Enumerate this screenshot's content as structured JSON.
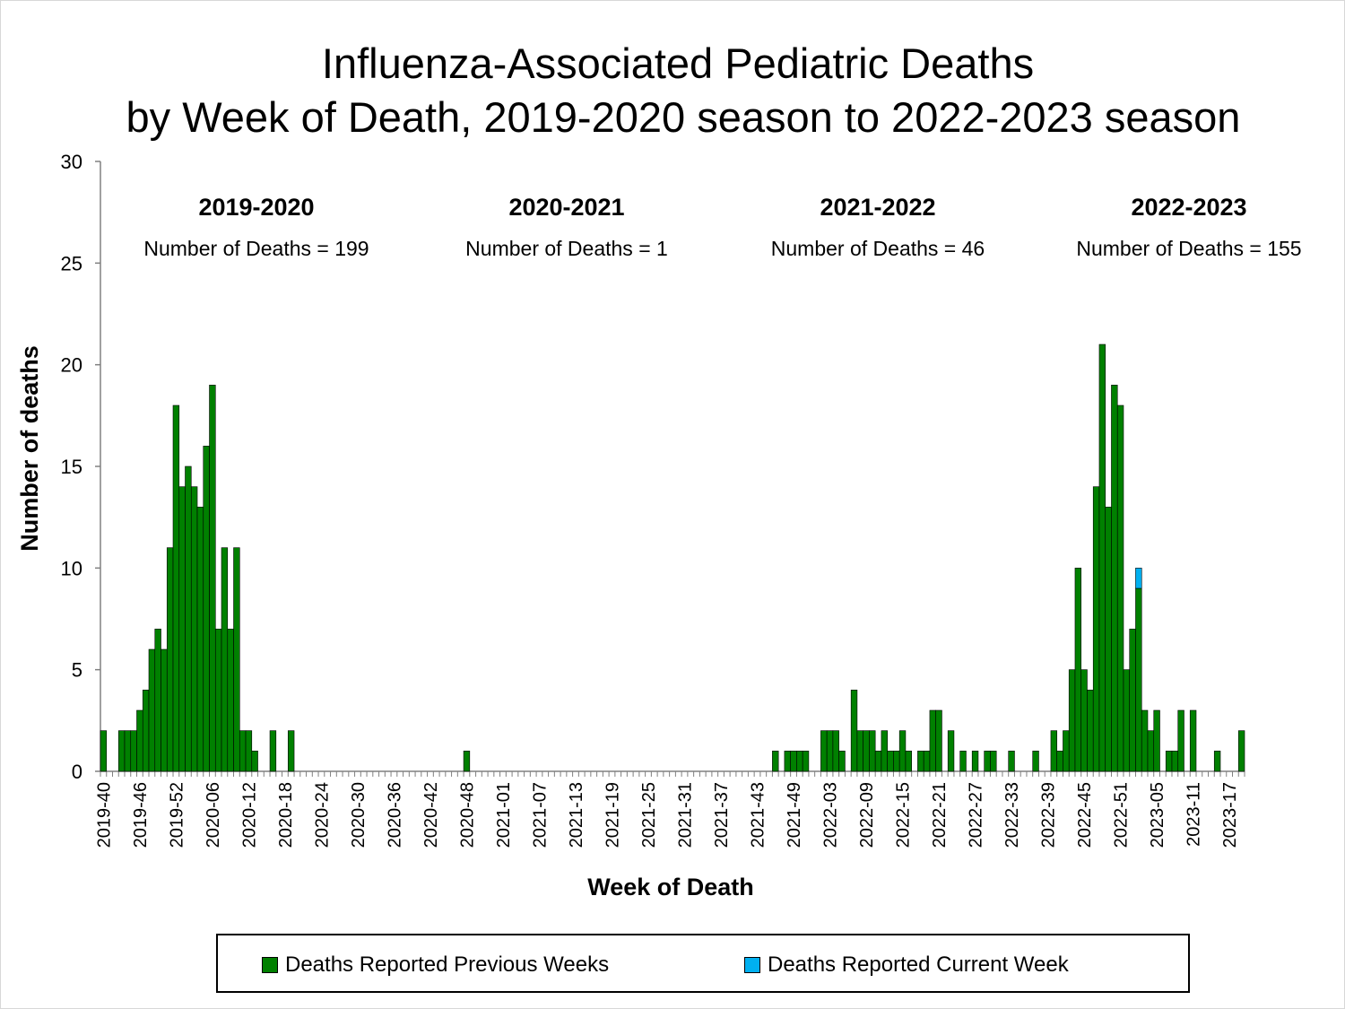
{
  "title_line1": "Influenza-Associated Pediatric Deaths",
  "title_line2": "by Week of Death, 2019-2020 season to 2022-2023 season",
  "colors": {
    "previous": "#008000",
    "current": "#00b0f0",
    "axis": "#808080"
  },
  "chart_data": {
    "type": "bar",
    "stacked": true,
    "xlabel": "Week of Death",
    "ylabel": "Number of deaths",
    "ylim": [
      0,
      30
    ],
    "yticks": [
      0,
      5,
      10,
      15,
      20,
      25,
      30
    ],
    "x_tick_labels": [
      "2019-40",
      "2019-46",
      "2019-52",
      "2020-06",
      "2020-12",
      "2020-18",
      "2020-24",
      "2020-30",
      "2020-36",
      "2020-42",
      "2020-48",
      "2021-01",
      "2021-07",
      "2021-13",
      "2021-19",
      "2021-25",
      "2021-31",
      "2021-37",
      "2021-43",
      "2021-49",
      "2022-03",
      "2022-09",
      "2022-15",
      "2022-21",
      "2022-27",
      "2022-33",
      "2022-39",
      "2022-45",
      "2022-51",
      "2023-05",
      "2023-11",
      "2023-17"
    ],
    "x_tick_every": 6,
    "seasons": [
      {
        "name": "2019-2020",
        "deaths_label": "Number of Deaths = 199"
      },
      {
        "name": "2020-2021",
        "deaths_label": "Number of Deaths = 1"
      },
      {
        "name": "2021-2022",
        "deaths_label": "Number of Deaths = 46"
      },
      {
        "name": "2022-2023",
        "deaths_label": "Number of Deaths = 155"
      }
    ],
    "series": [
      {
        "name": "Deaths Reported Previous Weeks",
        "values": [
          2,
          0,
          0,
          2,
          2,
          2,
          3,
          4,
          6,
          7,
          6,
          11,
          18,
          14,
          15,
          14,
          13,
          16,
          19,
          7,
          11,
          7,
          11,
          2,
          2,
          1,
          0,
          0,
          2,
          0,
          0,
          2,
          0,
          0,
          0,
          0,
          0,
          0,
          0,
          0,
          0,
          0,
          0,
          0,
          0,
          0,
          0,
          0,
          0,
          0,
          0,
          0,
          0,
          0,
          0,
          0,
          0,
          0,
          0,
          0,
          1,
          0,
          0,
          0,
          0,
          0,
          0,
          0,
          0,
          0,
          0,
          0,
          0,
          0,
          0,
          0,
          0,
          0,
          0,
          0,
          0,
          0,
          0,
          0,
          0,
          0,
          0,
          0,
          0,
          0,
          0,
          0,
          0,
          0,
          0,
          0,
          0,
          0,
          0,
          0,
          0,
          0,
          0,
          0,
          0,
          0,
          0,
          0,
          0,
          0,
          0,
          1,
          0,
          1,
          1,
          1,
          1,
          0,
          0,
          2,
          2,
          2,
          1,
          0,
          4,
          2,
          2,
          2,
          1,
          2,
          1,
          1,
          2,
          1,
          0,
          1,
          1,
          3,
          3,
          0,
          2,
          0,
          1,
          0,
          1,
          0,
          1,
          1,
          0,
          0,
          1,
          0,
          0,
          0,
          1,
          0,
          0,
          2,
          1,
          2,
          5,
          10,
          5,
          4,
          14,
          21,
          13,
          19,
          18,
          5,
          7,
          9,
          3,
          2,
          3,
          0,
          1,
          1,
          3,
          0,
          3,
          0,
          0,
          0,
          1,
          0,
          0,
          0,
          2
        ]
      },
      {
        "name": "Deaths Reported Current Week",
        "values": [
          0,
          0,
          0,
          0,
          0,
          0,
          0,
          0,
          0,
          0,
          0,
          0,
          0,
          0,
          0,
          0,
          0,
          0,
          0,
          0,
          0,
          0,
          0,
          0,
          0,
          0,
          0,
          0,
          0,
          0,
          0,
          0,
          0,
          0,
          0,
          0,
          0,
          0,
          0,
          0,
          0,
          0,
          0,
          0,
          0,
          0,
          0,
          0,
          0,
          0,
          0,
          0,
          0,
          0,
          0,
          0,
          0,
          0,
          0,
          0,
          0,
          0,
          0,
          0,
          0,
          0,
          0,
          0,
          0,
          0,
          0,
          0,
          0,
          0,
          0,
          0,
          0,
          0,
          0,
          0,
          0,
          0,
          0,
          0,
          0,
          0,
          0,
          0,
          0,
          0,
          0,
          0,
          0,
          0,
          0,
          0,
          0,
          0,
          0,
          0,
          0,
          0,
          0,
          0,
          0,
          0,
          0,
          0,
          0,
          0,
          0,
          0,
          0,
          0,
          0,
          0,
          0,
          0,
          0,
          0,
          0,
          0,
          0,
          0,
          0,
          0,
          0,
          0,
          0,
          0,
          0,
          0,
          0,
          0,
          0,
          0,
          0,
          0,
          0,
          0,
          0,
          0,
          0,
          0,
          0,
          0,
          0,
          0,
          0,
          0,
          0,
          0,
          0,
          0,
          0,
          0,
          0,
          0,
          0,
          0,
          0,
          0,
          0,
          0,
          0,
          0,
          0,
          0,
          0,
          0,
          0,
          1,
          0,
          0,
          0,
          0,
          0,
          0,
          0,
          0,
          0,
          0,
          0,
          0,
          0,
          0,
          0,
          0,
          0
        ]
      }
    ]
  }
}
